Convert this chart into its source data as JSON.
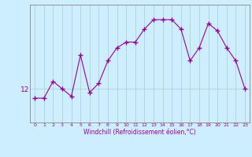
{
  "x": [
    0,
    1,
    2,
    3,
    4,
    5,
    6,
    7,
    8,
    9,
    10,
    11,
    12,
    13,
    14,
    15,
    16,
    17,
    18,
    19,
    20,
    21,
    22,
    23
  ],
  "y": [
    11.5,
    11.5,
    12.4,
    12.0,
    11.6,
    13.8,
    11.8,
    12.3,
    13.5,
    14.2,
    14.5,
    14.5,
    15.2,
    15.7,
    15.7,
    15.7,
    15.2,
    13.5,
    14.2,
    15.5,
    15.1,
    14.2,
    13.5,
    12.0
  ],
  "line_color": "#990099",
  "marker": "+",
  "marker_size": 4,
  "marker_edge_width": 1.0,
  "line_width": 0.8,
  "background_color": "#cceeff",
  "grid_color": "#aacccc",
  "ylabel_text": "12",
  "ylabel_value": 12,
  "xlabel": "Windchill (Refroidissement éolien,°C)",
  "xlim": [
    -0.5,
    23.5
  ],
  "ylim": [
    10.2,
    16.5
  ],
  "xticks": [
    0,
    1,
    2,
    3,
    4,
    5,
    6,
    7,
    8,
    9,
    10,
    11,
    12,
    13,
    14,
    15,
    16,
    17,
    18,
    19,
    20,
    21,
    22,
    23
  ],
  "yticks": [
    12
  ],
  "xlabel_fontsize": 5.5,
  "xtick_fontsize": 4.5,
  "ytick_fontsize": 6.5,
  "spine_color": "#888888"
}
